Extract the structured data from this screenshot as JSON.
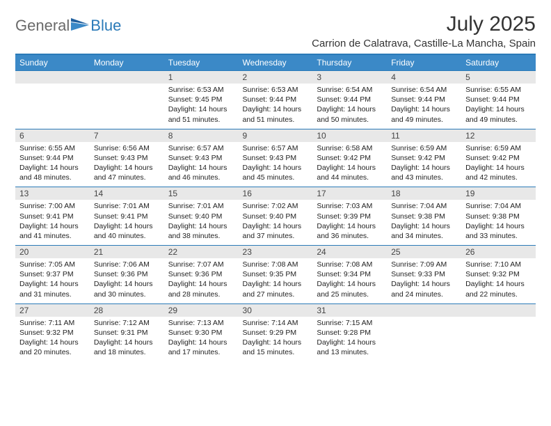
{
  "brand": {
    "name1": "General",
    "name2": "Blue"
  },
  "title": "July 2025",
  "location": "Carrion de Calatrava, Castille-La Mancha, Spain",
  "colors": {
    "header_bg": "#3b89c7",
    "header_text": "#ffffff",
    "border": "#2a7ab8",
    "daynum_bg": "#e8e8e8",
    "text": "#222222",
    "logo_gray": "#6a6a6a",
    "logo_blue": "#2a7ab8",
    "background": "#ffffff"
  },
  "typography": {
    "body_pt": 10.5,
    "dayhead_pt": 12,
    "title_pt": 30,
    "location_pt": 15
  },
  "day_headers": [
    "Sunday",
    "Monday",
    "Tuesday",
    "Wednesday",
    "Thursday",
    "Friday",
    "Saturday"
  ],
  "labels": {
    "sunrise": "Sunrise:",
    "sunset": "Sunset:",
    "daylight": "Daylight:"
  },
  "weeks": [
    [
      {
        "empty": true
      },
      {
        "empty": true
      },
      {
        "num": "1",
        "sunrise": "6:53 AM",
        "sunset": "9:45 PM",
        "daylight": "14 hours and 51 minutes."
      },
      {
        "num": "2",
        "sunrise": "6:53 AM",
        "sunset": "9:44 PM",
        "daylight": "14 hours and 51 minutes."
      },
      {
        "num": "3",
        "sunrise": "6:54 AM",
        "sunset": "9:44 PM",
        "daylight": "14 hours and 50 minutes."
      },
      {
        "num": "4",
        "sunrise": "6:54 AM",
        "sunset": "9:44 PM",
        "daylight": "14 hours and 49 minutes."
      },
      {
        "num": "5",
        "sunrise": "6:55 AM",
        "sunset": "9:44 PM",
        "daylight": "14 hours and 49 minutes."
      }
    ],
    [
      {
        "num": "6",
        "sunrise": "6:55 AM",
        "sunset": "9:44 PM",
        "daylight": "14 hours and 48 minutes."
      },
      {
        "num": "7",
        "sunrise": "6:56 AM",
        "sunset": "9:43 PM",
        "daylight": "14 hours and 47 minutes."
      },
      {
        "num": "8",
        "sunrise": "6:57 AM",
        "sunset": "9:43 PM",
        "daylight": "14 hours and 46 minutes."
      },
      {
        "num": "9",
        "sunrise": "6:57 AM",
        "sunset": "9:43 PM",
        "daylight": "14 hours and 45 minutes."
      },
      {
        "num": "10",
        "sunrise": "6:58 AM",
        "sunset": "9:42 PM",
        "daylight": "14 hours and 44 minutes."
      },
      {
        "num": "11",
        "sunrise": "6:59 AM",
        "sunset": "9:42 PM",
        "daylight": "14 hours and 43 minutes."
      },
      {
        "num": "12",
        "sunrise": "6:59 AM",
        "sunset": "9:42 PM",
        "daylight": "14 hours and 42 minutes."
      }
    ],
    [
      {
        "num": "13",
        "sunrise": "7:00 AM",
        "sunset": "9:41 PM",
        "daylight": "14 hours and 41 minutes."
      },
      {
        "num": "14",
        "sunrise": "7:01 AM",
        "sunset": "9:41 PM",
        "daylight": "14 hours and 40 minutes."
      },
      {
        "num": "15",
        "sunrise": "7:01 AM",
        "sunset": "9:40 PM",
        "daylight": "14 hours and 38 minutes."
      },
      {
        "num": "16",
        "sunrise": "7:02 AM",
        "sunset": "9:40 PM",
        "daylight": "14 hours and 37 minutes."
      },
      {
        "num": "17",
        "sunrise": "7:03 AM",
        "sunset": "9:39 PM",
        "daylight": "14 hours and 36 minutes."
      },
      {
        "num": "18",
        "sunrise": "7:04 AM",
        "sunset": "9:38 PM",
        "daylight": "14 hours and 34 minutes."
      },
      {
        "num": "19",
        "sunrise": "7:04 AM",
        "sunset": "9:38 PM",
        "daylight": "14 hours and 33 minutes."
      }
    ],
    [
      {
        "num": "20",
        "sunrise": "7:05 AM",
        "sunset": "9:37 PM",
        "daylight": "14 hours and 31 minutes."
      },
      {
        "num": "21",
        "sunrise": "7:06 AM",
        "sunset": "9:36 PM",
        "daylight": "14 hours and 30 minutes."
      },
      {
        "num": "22",
        "sunrise": "7:07 AM",
        "sunset": "9:36 PM",
        "daylight": "14 hours and 28 minutes."
      },
      {
        "num": "23",
        "sunrise": "7:08 AM",
        "sunset": "9:35 PM",
        "daylight": "14 hours and 27 minutes."
      },
      {
        "num": "24",
        "sunrise": "7:08 AM",
        "sunset": "9:34 PM",
        "daylight": "14 hours and 25 minutes."
      },
      {
        "num": "25",
        "sunrise": "7:09 AM",
        "sunset": "9:33 PM",
        "daylight": "14 hours and 24 minutes."
      },
      {
        "num": "26",
        "sunrise": "7:10 AM",
        "sunset": "9:32 PM",
        "daylight": "14 hours and 22 minutes."
      }
    ],
    [
      {
        "num": "27",
        "sunrise": "7:11 AM",
        "sunset": "9:32 PM",
        "daylight": "14 hours and 20 minutes."
      },
      {
        "num": "28",
        "sunrise": "7:12 AM",
        "sunset": "9:31 PM",
        "daylight": "14 hours and 18 minutes."
      },
      {
        "num": "29",
        "sunrise": "7:13 AM",
        "sunset": "9:30 PM",
        "daylight": "14 hours and 17 minutes."
      },
      {
        "num": "30",
        "sunrise": "7:14 AM",
        "sunset": "9:29 PM",
        "daylight": "14 hours and 15 minutes."
      },
      {
        "num": "31",
        "sunrise": "7:15 AM",
        "sunset": "9:28 PM",
        "daylight": "14 hours and 13 minutes."
      },
      {
        "empty": true
      },
      {
        "empty": true
      }
    ]
  ]
}
